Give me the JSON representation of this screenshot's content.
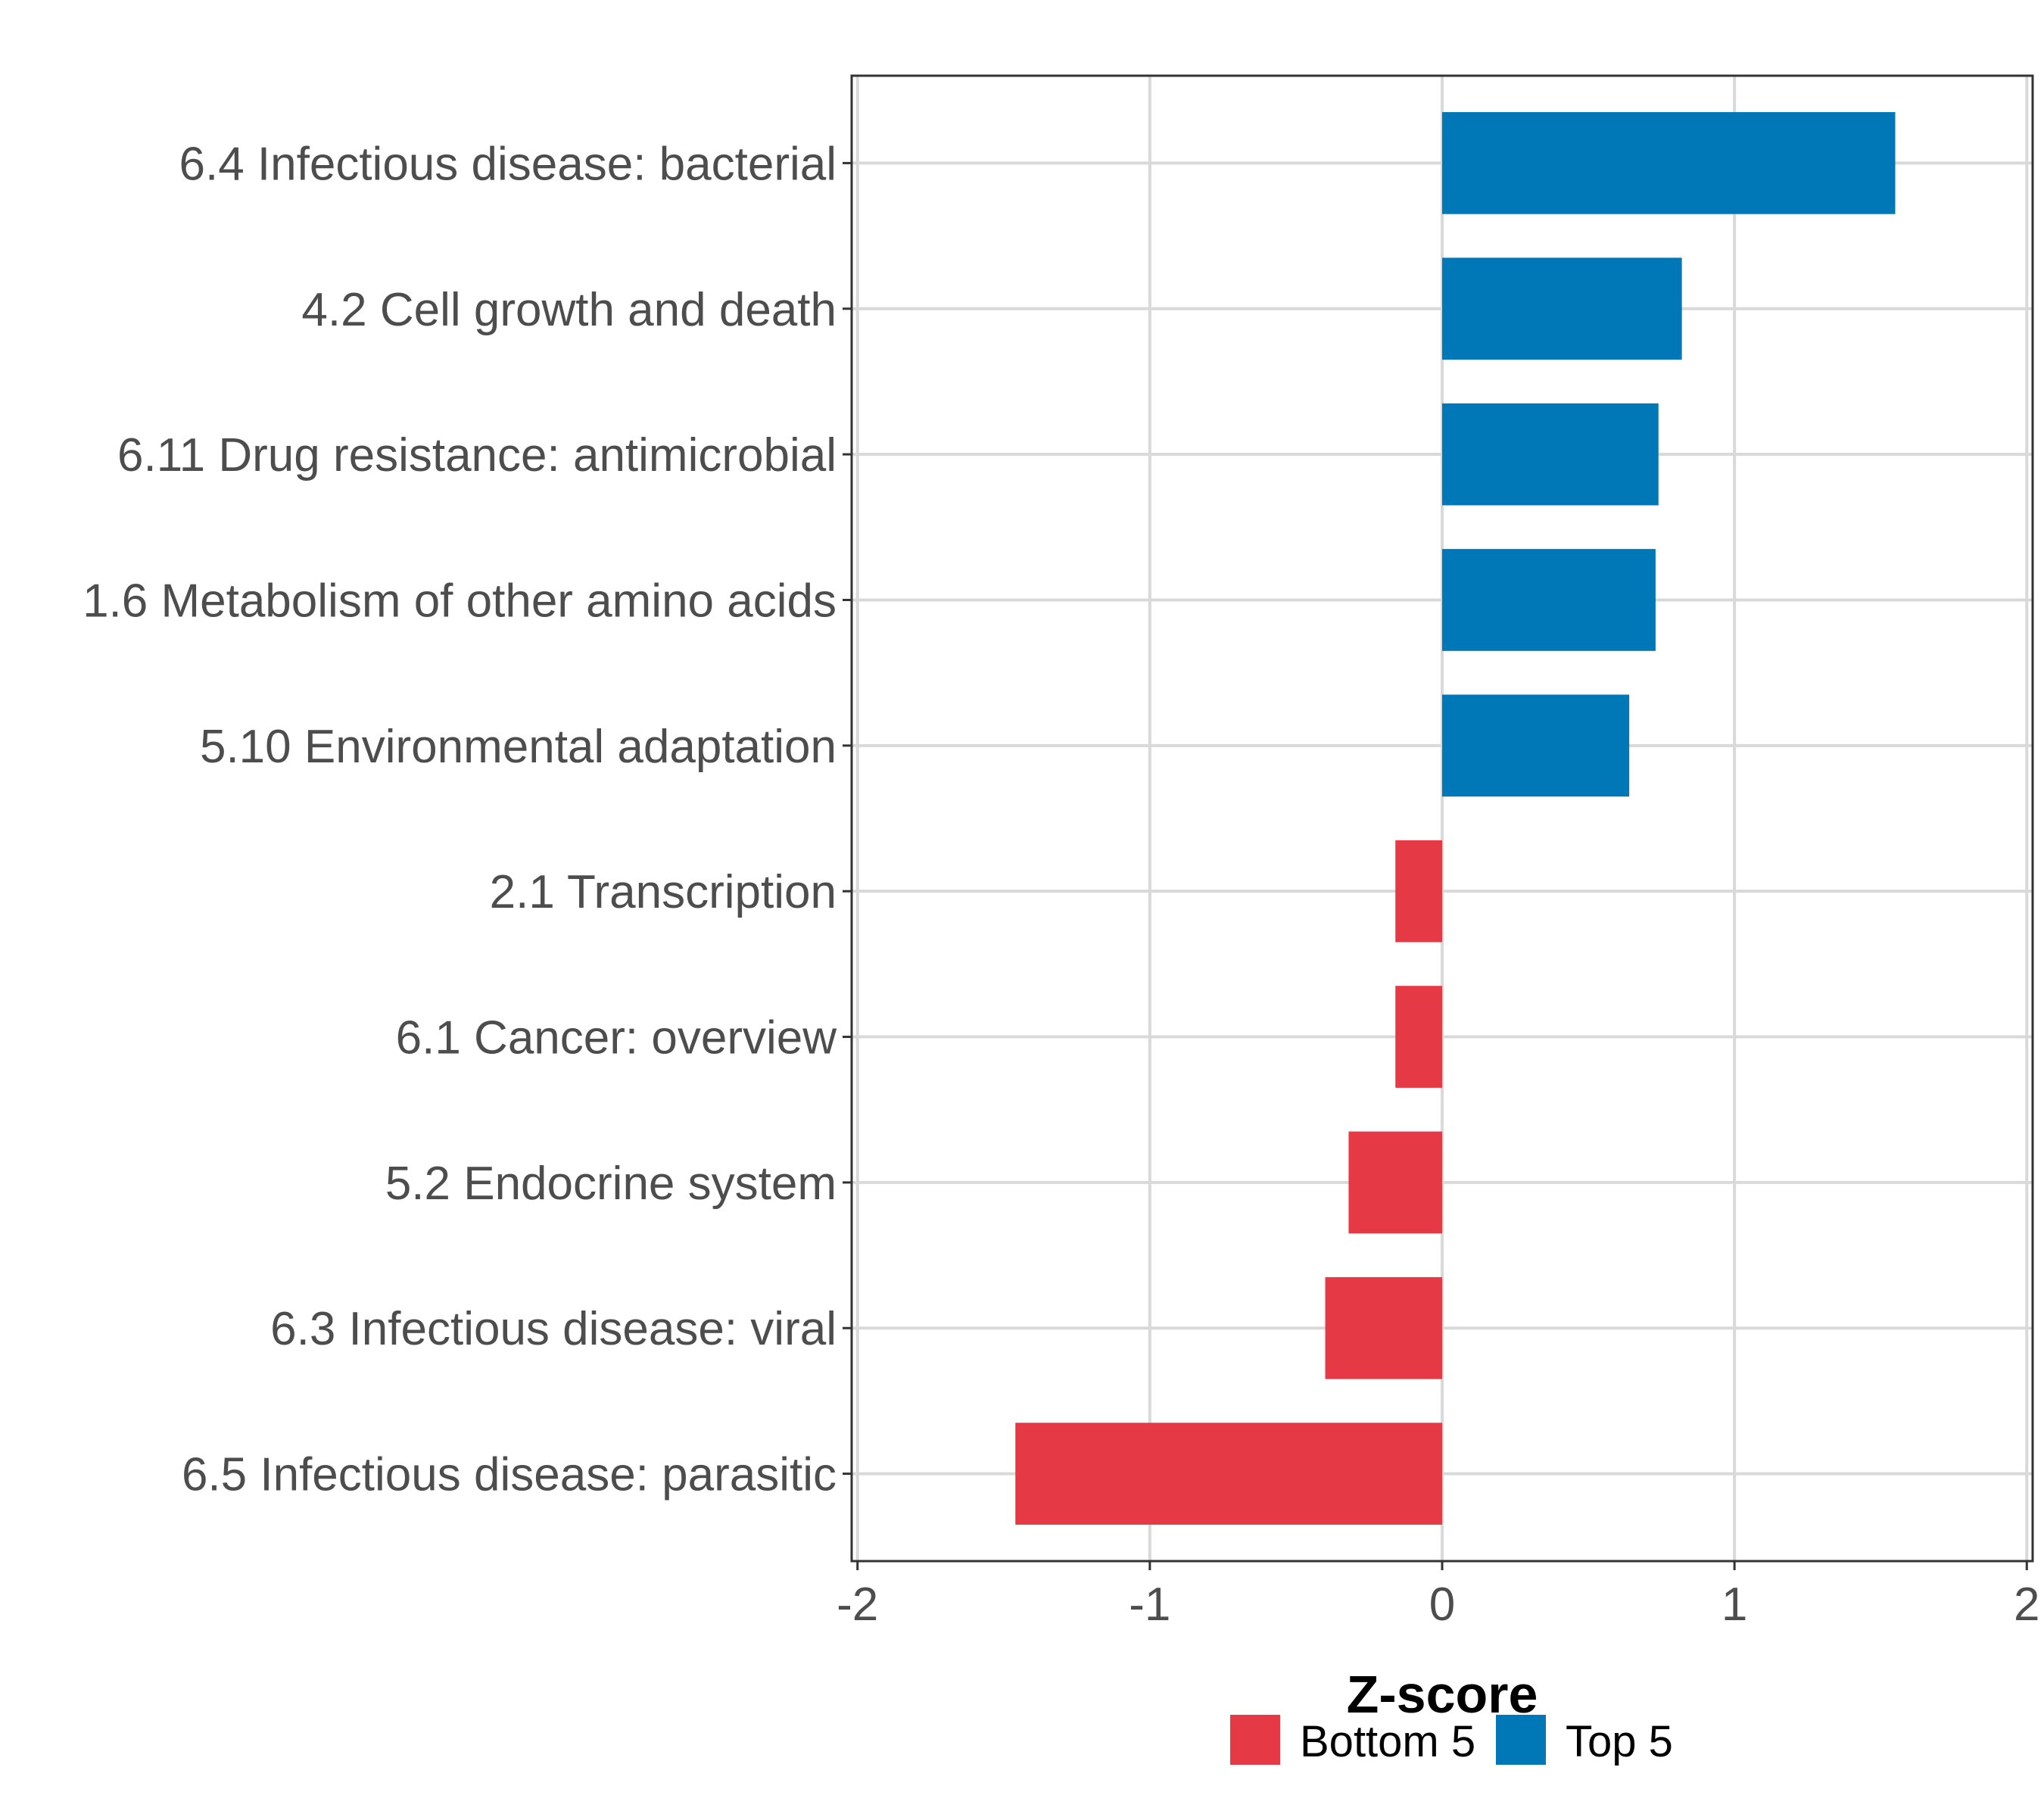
{
  "chart_data": {
    "type": "bar",
    "orientation": "horizontal",
    "title": "",
    "xlabel": "Z-score",
    "ylabel": "",
    "xlim": [
      -2,
      2
    ],
    "xticks": [
      -2,
      -1,
      0,
      1,
      2
    ],
    "xtick_labels": [
      "-2",
      "-1",
      "0",
      "1",
      "2"
    ],
    "grid": true,
    "categories": [
      "6.4 Infectious disease: bacterial",
      "4.2 Cell growth and death",
      "6.11 Drug resistance: antimicrobial",
      "1.6 Metabolism of other amino acids",
      "5.10 Environmental adaptation",
      "2.1 Transcription",
      "6.1 Cancer: overview",
      "5.2 Endocrine system",
      "6.3 Infectious disease: viral",
      "6.5 Infectious disease: parasitic"
    ],
    "values": [
      1.55,
      0.82,
      0.74,
      0.73,
      0.64,
      -0.16,
      -0.16,
      -0.32,
      -0.4,
      -1.46
    ],
    "groups": [
      "Top 5",
      "Top 5",
      "Top 5",
      "Top 5",
      "Top 5",
      "Bottom 5",
      "Bottom 5",
      "Bottom 5",
      "Bottom 5",
      "Bottom 5"
    ],
    "legend": {
      "placement": "bottom",
      "entries": [
        {
          "label": "Bottom 5",
          "color": "#E63946"
        },
        {
          "label": "Top 5",
          "color": "#0077B6"
        }
      ]
    },
    "colors": {
      "Top 5": "#0077B6",
      "Bottom 5": "#E63946"
    }
  }
}
